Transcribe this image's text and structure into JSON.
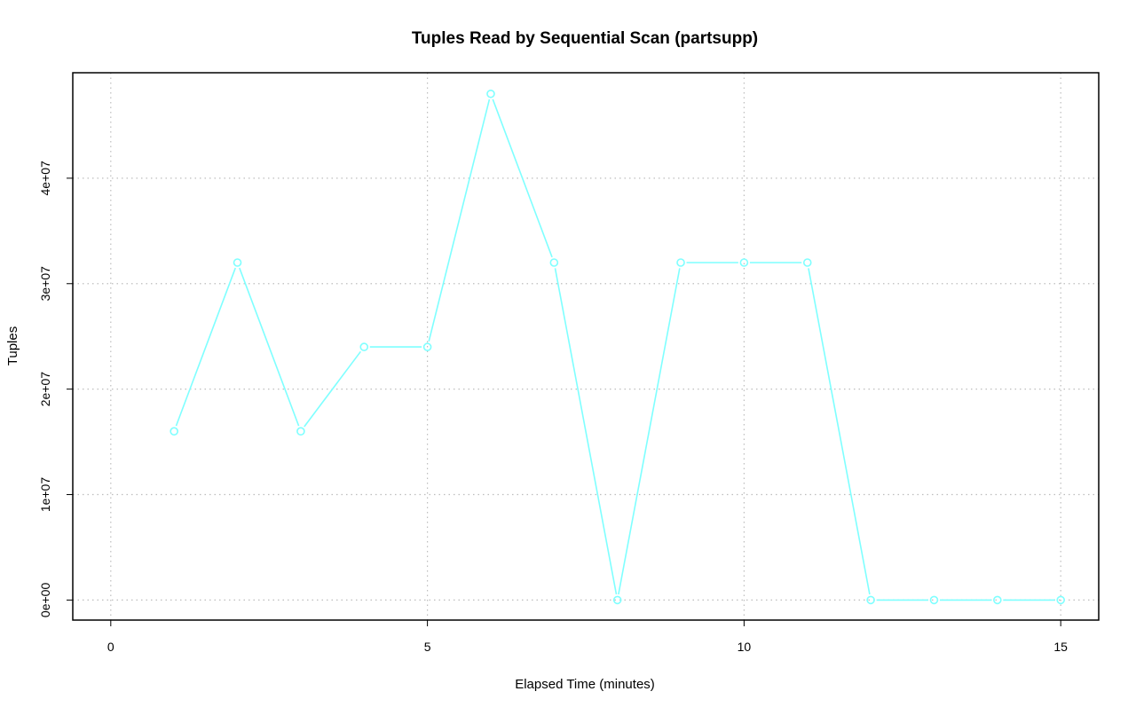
{
  "chart_data": {
    "type": "line",
    "title": "Tuples Read by Sequential Scan (partsupp)",
    "xlabel": "Elapsed Time (minutes)",
    "ylabel": "Tuples",
    "xlim": [
      -0.6,
      15.6
    ],
    "ylim": [
      -1900000,
      50000000
    ],
    "x_ticks": [
      0,
      5,
      10,
      15
    ],
    "x_tick_labels": [
      "0",
      "5",
      "10",
      "15"
    ],
    "y_ticks": [
      0,
      10000000,
      20000000,
      30000000,
      40000000
    ],
    "y_tick_labels": [
      "0e+00",
      "1e+07",
      "2e+07",
      "3e+07",
      "4e+07"
    ],
    "grid": true,
    "legend": "none",
    "series": [
      {
        "color": "#7fffff",
        "marker": "circle",
        "x": [
          1,
          2,
          3,
          4,
          5,
          6,
          7,
          8,
          9,
          10,
          11,
          12,
          13,
          14,
          15
        ],
        "values": [
          16000000,
          32000000,
          16000000,
          24000000,
          24000000,
          48000000,
          32000000,
          0,
          32000000,
          32000000,
          32000000,
          0,
          0,
          0,
          0
        ]
      }
    ]
  }
}
